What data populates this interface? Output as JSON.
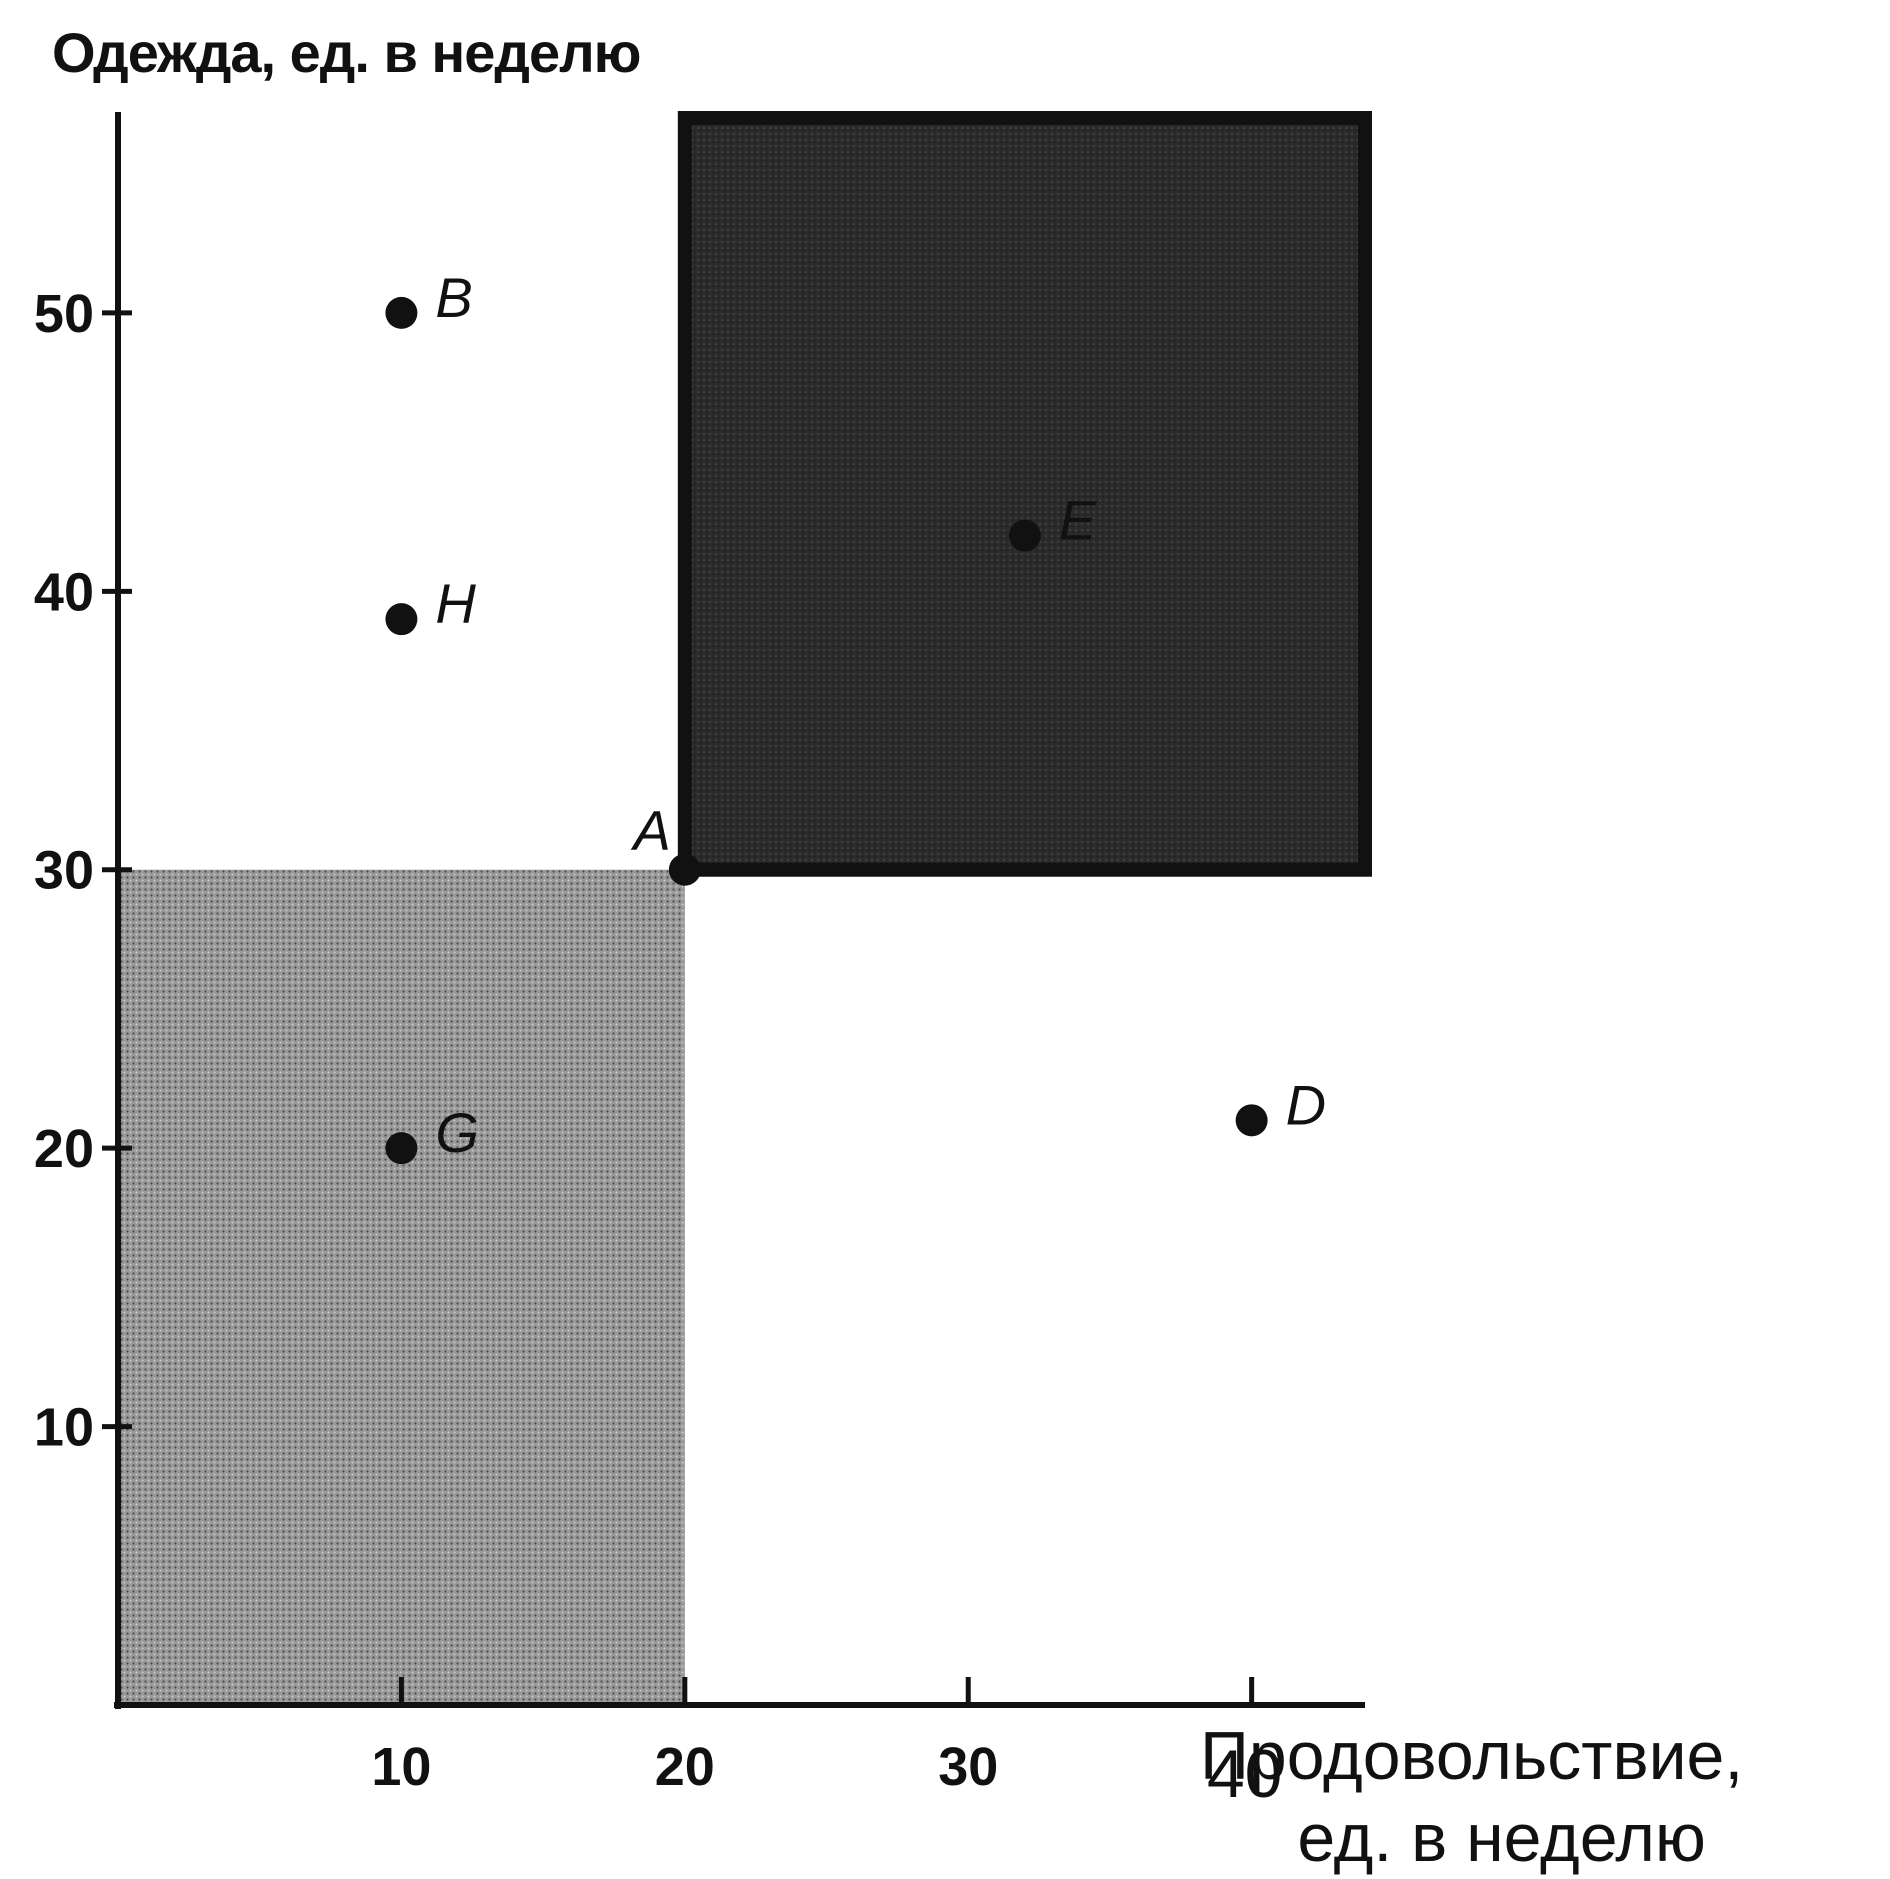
{
  "chart_data": {
    "type": "scatter",
    "title": "",
    "ylabel": "Одежда, ед. в неделю",
    "xlabel": "Продовольствие,",
    "xlabel_line2": "ед. в неделю",
    "xlim": [
      0,
      44
    ],
    "ylim": [
      0,
      57
    ],
    "x_ticks": [
      10,
      20,
      30,
      40
    ],
    "y_ticks": [
      10,
      20,
      30,
      40,
      50
    ],
    "grid": false,
    "regions": [
      {
        "name": "less-preferred",
        "x": [
          0,
          20
        ],
        "y": [
          0,
          30
        ],
        "fill": "light-gray"
      },
      {
        "name": "more-preferred",
        "x": [
          20,
          44
        ],
        "y": [
          30,
          57
        ],
        "fill": "dark-gray"
      }
    ],
    "points": [
      {
        "label": "A",
        "x": 20,
        "y": 30
      },
      {
        "label": "B",
        "x": 10,
        "y": 50
      },
      {
        "label": "H",
        "x": 10,
        "y": 39
      },
      {
        "label": "E",
        "x": 32,
        "y": 42
      },
      {
        "label": "G",
        "x": 10,
        "y": 20
      },
      {
        "label": "D",
        "x": 40,
        "y": 21
      }
    ]
  },
  "colors": {
    "axis": "#111111",
    "light_region": "#8c8c8c",
    "dark_region": "#262626",
    "point": "#111111"
  }
}
